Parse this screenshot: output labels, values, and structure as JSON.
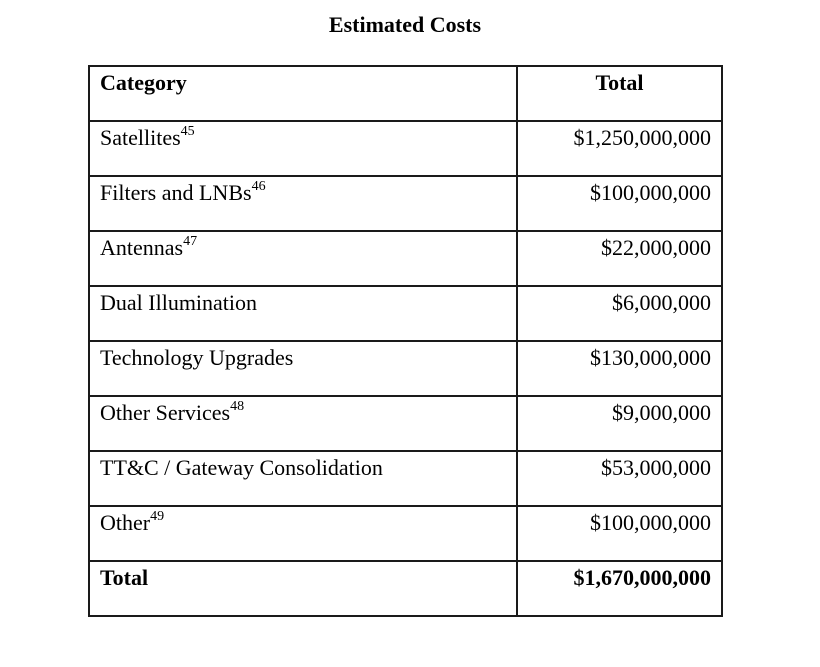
{
  "document": {
    "title": "Estimated Costs"
  },
  "table": {
    "headers": {
      "category": "Category",
      "total": "Total"
    },
    "rows": [
      {
        "category": "Satellites",
        "footnote": "45",
        "amount": "$1,250,000,000"
      },
      {
        "category": "Filters and LNBs",
        "footnote": "46",
        "amount": "$100,000,000"
      },
      {
        "category": "Antennas",
        "footnote": "47",
        "amount": "$22,000,000"
      },
      {
        "category": "Dual Illumination",
        "footnote": "",
        "amount": "$6,000,000"
      },
      {
        "category": "Technology Upgrades",
        "footnote": "",
        "amount": "$130,000,000"
      },
      {
        "category": "Other Services",
        "footnote": "48",
        "amount": "$9,000,000"
      },
      {
        "category": "TT&C / Gateway Consolidation",
        "footnote": "",
        "amount": "$53,000,000"
      },
      {
        "category": "Other",
        "footnote": "49",
        "amount": "$100,000,000"
      }
    ],
    "total": {
      "label": "Total",
      "amount": "$1,670,000,000"
    }
  }
}
